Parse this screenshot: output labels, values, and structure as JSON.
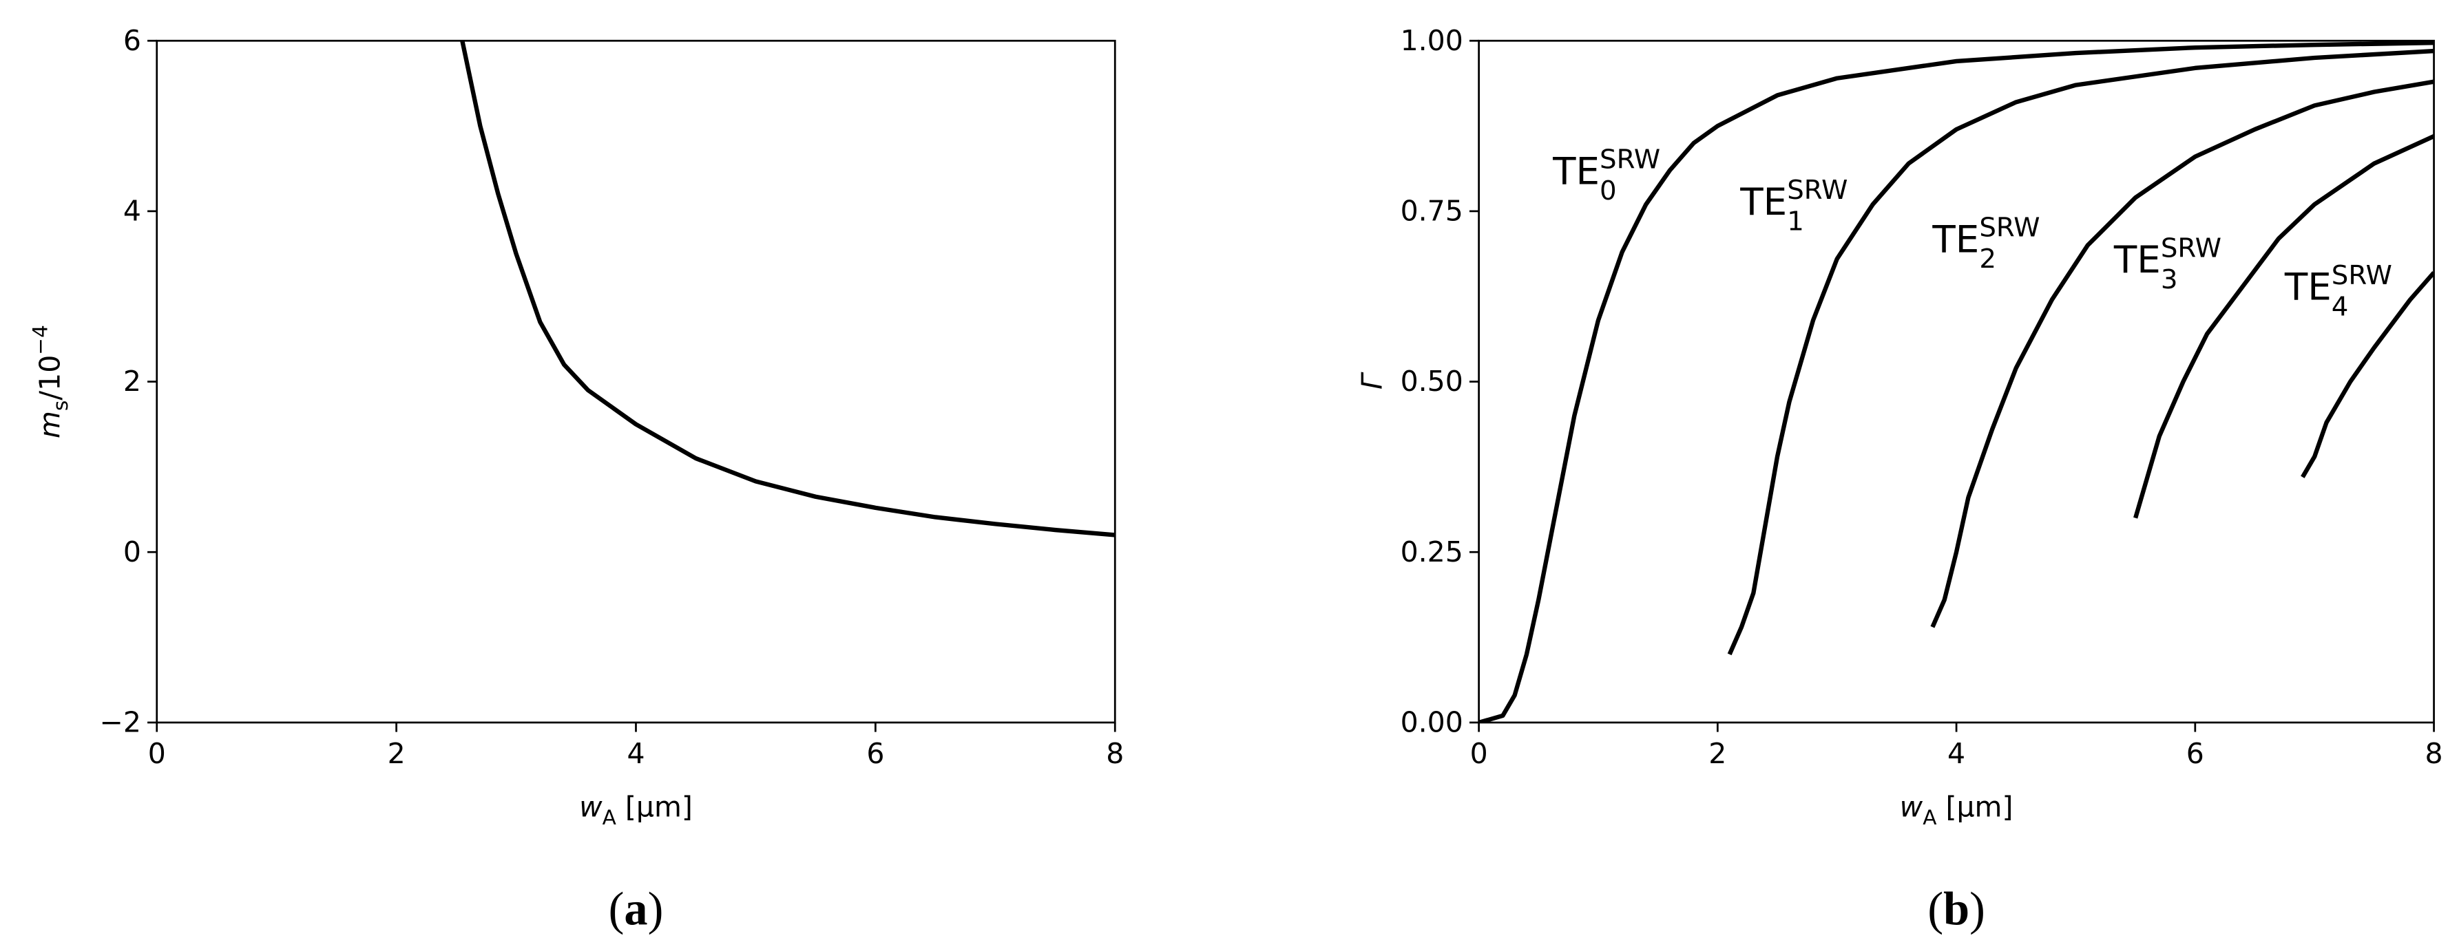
{
  "chart_data": [
    {
      "type": "line",
      "caption": {
        "open": "(",
        "letter": "a",
        "close": ")"
      },
      "xlabel": {
        "var": "w",
        "sub": "A",
        "rest": " [μm]"
      },
      "ylabel": {
        "var": "m",
        "sub": "s",
        "rest": "/10",
        "sup": "−4"
      },
      "x": [
        2.55,
        2.7,
        2.85,
        3.0,
        3.2,
        3.4,
        3.6,
        3.8,
        4.0,
        4.5,
        5.0,
        5.5,
        6.0,
        6.5,
        7.0,
        7.5,
        8.0
      ],
      "values": [
        6,
        5.0,
        4.2,
        3.5,
        2.7,
        2.2,
        1.9,
        1.7,
        1.5,
        1.1,
        0.83,
        0.65,
        0.52,
        0.41,
        0.33,
        0.26,
        0.2
      ],
      "color": "#000000",
      "xlim": [
        0,
        8
      ],
      "xticks": [
        0,
        2,
        4,
        6,
        8
      ],
      "ylim": [
        -2,
        6
      ],
      "yticks": [
        {
          "value": -2,
          "label": "−2"
        },
        0,
        2,
        4,
        6
      ]
    },
    {
      "type": "line",
      "caption": {
        "open": "(",
        "letter": "b",
        "close": ")"
      },
      "xlabel": {
        "var": "w",
        "sub": "A",
        "rest": " [μm]"
      },
      "ylabel": {
        "var": "Γ"
      },
      "series": [
        {
          "label": {
            "base": "TE",
            "sub": "0",
            "sup": "SRW"
          },
          "color": "#000000",
          "x": [
            0,
            0.2,
            0.3,
            0.4,
            0.5,
            0.6,
            0.7,
            0.8,
            0.9,
            1.0,
            1.2,
            1.4,
            1.6,
            1.8,
            2.0,
            2.5,
            3,
            4,
            5,
            6,
            7,
            8
          ],
          "values": [
            0,
            0.01,
            0.04,
            0.1,
            0.18,
            0.27,
            0.36,
            0.45,
            0.52,
            0.59,
            0.69,
            0.76,
            0.81,
            0.85,
            0.875,
            0.92,
            0.945,
            0.97,
            0.982,
            0.99,
            0.994,
            0.997
          ]
        },
        {
          "label": {
            "base": "TE",
            "sub": "1",
            "sup": "SRW"
          },
          "color": "#000000",
          "x": [
            2.1,
            2.2,
            2.3,
            2.4,
            2.5,
            2.6,
            2.8,
            3.0,
            3.3,
            3.6,
            4.0,
            4.5,
            5,
            6,
            7,
            8
          ],
          "values": [
            0.1,
            0.14,
            0.19,
            0.29,
            0.39,
            0.47,
            0.59,
            0.68,
            0.76,
            0.82,
            0.87,
            0.91,
            0.935,
            0.96,
            0.975,
            0.985
          ]
        },
        {
          "label": {
            "base": "TE",
            "sub": "2",
            "sup": "SRW"
          },
          "color": "#000000",
          "x": [
            3.8,
            3.9,
            4.0,
            4.1,
            4.3,
            4.5,
            4.8,
            5.1,
            5.5,
            6.0,
            6.5,
            7.0,
            7.5,
            8.0
          ],
          "values": [
            0.14,
            0.18,
            0.25,
            0.33,
            0.43,
            0.52,
            0.62,
            0.7,
            0.77,
            0.83,
            0.87,
            0.905,
            0.925,
            0.94
          ]
        },
        {
          "label": {
            "base": "TE",
            "sub": "3",
            "sup": "SRW"
          },
          "color": "#000000",
          "x": [
            5.5,
            5.6,
            5.7,
            5.9,
            6.1,
            6.4,
            6.7,
            7.0,
            7.5,
            8.0
          ],
          "values": [
            0.3,
            0.36,
            0.42,
            0.5,
            0.57,
            0.64,
            0.71,
            0.76,
            0.82,
            0.86
          ]
        },
        {
          "label": {
            "base": "TE",
            "sub": "4",
            "sup": "SRW"
          },
          "color": "#000000",
          "x": [
            6.9,
            7.0,
            7.1,
            7.3,
            7.5,
            7.8,
            8.0
          ],
          "values": [
            0.36,
            0.39,
            0.44,
            0.5,
            0.55,
            0.62,
            0.66
          ]
        }
      ],
      "xlim": [
        0,
        8
      ],
      "xticks": [
        0,
        2,
        4,
        6,
        8
      ],
      "ylim": [
        0,
        1
      ],
      "yticks": [
        {
          "value": 0,
          "label": "0.00"
        },
        {
          "value": 0.25,
          "label": "0.25"
        },
        {
          "value": 0.5,
          "label": "0.50"
        },
        {
          "value": 0.75,
          "label": "0.75"
        },
        {
          "value": 1,
          "label": "1.00"
        }
      ]
    }
  ]
}
